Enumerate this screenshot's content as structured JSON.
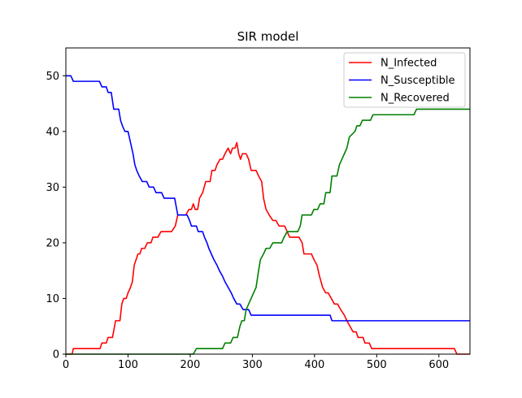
{
  "chart_data": {
    "type": "line",
    "title": "SIR model",
    "xlabel": "",
    "ylabel": "",
    "xlim": [
      0,
      650
    ],
    "ylim": [
      0,
      55
    ],
    "xticks": [
      0,
      100,
      200,
      300,
      400,
      500,
      600
    ],
    "yticks": [
      0,
      10,
      20,
      30,
      40,
      50
    ],
    "grid": false,
    "legend_position": "top-right",
    "series": [
      {
        "name": "N_Infected",
        "color": "#ff0000",
        "points": [
          [
            0,
            0
          ],
          [
            10,
            0
          ],
          [
            12,
            1
          ],
          [
            55,
            1
          ],
          [
            58,
            2
          ],
          [
            65,
            2
          ],
          [
            68,
            3
          ],
          [
            75,
            3
          ],
          [
            80,
            6
          ],
          [
            87,
            6
          ],
          [
            90,
            9
          ],
          [
            93,
            10
          ],
          [
            97,
            10
          ],
          [
            100,
            11
          ],
          [
            104,
            12
          ],
          [
            107,
            13
          ],
          [
            110,
            16
          ],
          [
            113,
            17
          ],
          [
            116,
            18
          ],
          [
            119,
            18
          ],
          [
            122,
            19
          ],
          [
            127,
            19
          ],
          [
            131,
            20
          ],
          [
            137,
            20
          ],
          [
            140,
            21
          ],
          [
            148,
            21
          ],
          [
            153,
            22
          ],
          [
            170,
            22
          ],
          [
            176,
            23
          ],
          [
            180,
            25
          ],
          [
            183,
            25
          ],
          [
            188,
            25
          ],
          [
            193,
            25
          ],
          [
            198,
            26
          ],
          [
            202,
            26
          ],
          [
            205,
            27
          ],
          [
            208,
            26
          ],
          [
            212,
            26
          ],
          [
            215,
            28
          ],
          [
            220,
            29
          ],
          [
            225,
            31
          ],
          [
            232,
            31
          ],
          [
            235,
            33
          ],
          [
            240,
            33
          ],
          [
            243,
            34
          ],
          [
            248,
            35
          ],
          [
            252,
            35
          ],
          [
            256,
            36
          ],
          [
            261,
            37
          ],
          [
            265,
            36
          ],
          [
            268,
            37
          ],
          [
            272,
            37
          ],
          [
            275,
            38
          ],
          [
            278,
            36
          ],
          [
            281,
            35
          ],
          [
            284,
            36
          ],
          [
            290,
            36
          ],
          [
            294,
            35
          ],
          [
            298,
            33
          ],
          [
            306,
            33
          ],
          [
            310,
            32
          ],
          [
            315,
            31
          ],
          [
            318,
            28
          ],
          [
            322,
            26
          ],
          [
            327,
            25
          ],
          [
            333,
            24
          ],
          [
            338,
            24
          ],
          [
            343,
            23
          ],
          [
            352,
            23
          ],
          [
            356,
            22
          ],
          [
            360,
            21
          ],
          [
            375,
            21
          ],
          [
            380,
            20
          ],
          [
            383,
            18
          ],
          [
            395,
            18
          ],
          [
            399,
            17
          ],
          [
            404,
            16
          ],
          [
            408,
            14
          ],
          [
            413,
            12
          ],
          [
            418,
            11
          ],
          [
            422,
            11
          ],
          [
            427,
            10
          ],
          [
            432,
            9
          ],
          [
            437,
            9
          ],
          [
            442,
            8
          ],
          [
            448,
            7
          ],
          [
            452,
            6
          ],
          [
            457,
            5
          ],
          [
            462,
            4
          ],
          [
            467,
            4
          ],
          [
            470,
            3
          ],
          [
            478,
            3
          ],
          [
            481,
            2
          ],
          [
            488,
            2
          ],
          [
            492,
            1
          ],
          [
            625,
            1
          ],
          [
            629,
            0
          ],
          [
            650,
            0
          ]
        ]
      },
      {
        "name": "N_Susceptible",
        "color": "#0000ff",
        "points": [
          [
            0,
            50
          ],
          [
            8,
            50
          ],
          [
            12,
            49
          ],
          [
            54,
            49
          ],
          [
            58,
            48
          ],
          [
            65,
            48
          ],
          [
            68,
            47
          ],
          [
            73,
            47
          ],
          [
            77,
            44
          ],
          [
            85,
            44
          ],
          [
            88,
            42
          ],
          [
            91,
            41
          ],
          [
            95,
            40
          ],
          [
            100,
            40
          ],
          [
            104,
            38
          ],
          [
            108,
            36
          ],
          [
            111,
            34
          ],
          [
            114,
            33
          ],
          [
            118,
            32
          ],
          [
            123,
            31
          ],
          [
            130,
            31
          ],
          [
            134,
            30
          ],
          [
            141,
            30
          ],
          [
            145,
            29
          ],
          [
            154,
            29
          ],
          [
            158,
            28
          ],
          [
            175,
            28
          ],
          [
            180,
            25
          ],
          [
            195,
            25
          ],
          [
            199,
            24
          ],
          [
            202,
            23
          ],
          [
            210,
            23
          ],
          [
            213,
            22
          ],
          [
            220,
            22
          ],
          [
            223,
            21
          ],
          [
            227,
            20
          ],
          [
            230,
            19
          ],
          [
            234,
            18
          ],
          [
            238,
            17
          ],
          [
            243,
            16
          ],
          [
            247,
            15
          ],
          [
            252,
            14
          ],
          [
            256,
            13
          ],
          [
            261,
            12
          ],
          [
            266,
            11
          ],
          [
            270,
            10
          ],
          [
            275,
            9
          ],
          [
            280,
            9
          ],
          [
            285,
            8
          ],
          [
            294,
            8
          ],
          [
            298,
            7
          ],
          [
            425,
            7
          ],
          [
            428,
            6
          ],
          [
            650,
            6
          ]
        ]
      },
      {
        "name": "N_Recovered",
        "color": "#008000",
        "points": [
          [
            0,
            0
          ],
          [
            205,
            0
          ],
          [
            210,
            1
          ],
          [
            252,
            1
          ],
          [
            256,
            2
          ],
          [
            265,
            2
          ],
          [
            269,
            3
          ],
          [
            276,
            3
          ],
          [
            280,
            5
          ],
          [
            283,
            6
          ],
          [
            287,
            6
          ],
          [
            290,
            8
          ],
          [
            294,
            9
          ],
          [
            298,
            10
          ],
          [
            302,
            11
          ],
          [
            306,
            12
          ],
          [
            310,
            15
          ],
          [
            313,
            17
          ],
          [
            318,
            18
          ],
          [
            322,
            19
          ],
          [
            328,
            19
          ],
          [
            333,
            20
          ],
          [
            347,
            20
          ],
          [
            351,
            21
          ],
          [
            356,
            22
          ],
          [
            373,
            22
          ],
          [
            377,
            23
          ],
          [
            380,
            25
          ],
          [
            395,
            25
          ],
          [
            399,
            26
          ],
          [
            405,
            26
          ],
          [
            409,
            27
          ],
          [
            415,
            27
          ],
          [
            418,
            29
          ],
          [
            425,
            29
          ],
          [
            428,
            32
          ],
          [
            436,
            32
          ],
          [
            440,
            34
          ],
          [
            444,
            35
          ],
          [
            448,
            36
          ],
          [
            452,
            37
          ],
          [
            456,
            39
          ],
          [
            465,
            40
          ],
          [
            468,
            41
          ],
          [
            473,
            41
          ],
          [
            477,
            42
          ],
          [
            490,
            42
          ],
          [
            494,
            43
          ],
          [
            560,
            43
          ],
          [
            564,
            44
          ],
          [
            650,
            44
          ]
        ]
      }
    ]
  }
}
